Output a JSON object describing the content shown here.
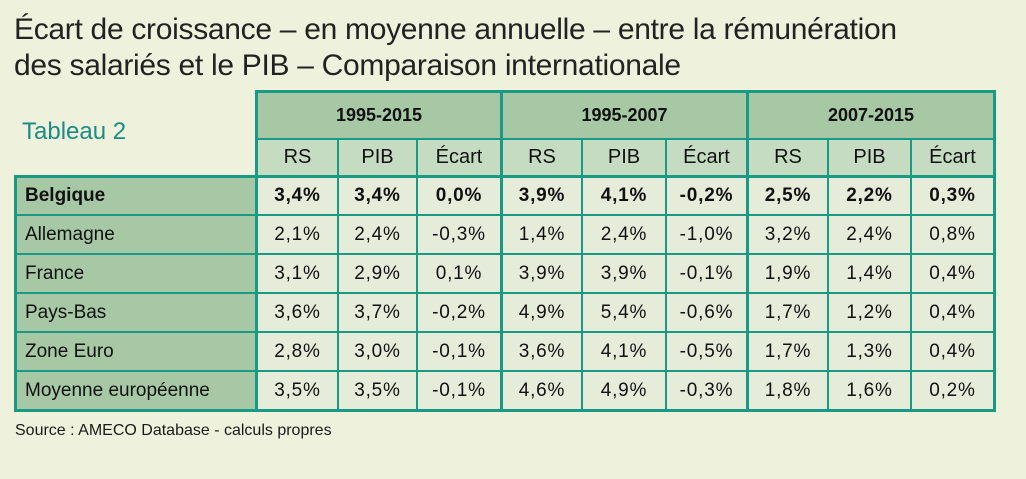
{
  "title": {
    "line1": "Écart de croissance – en moyenne annuelle – entre la rémunération",
    "line2": "des salariés et le PIB – Comparaison internationale"
  },
  "table_label": "Tableau 2",
  "source": "Source : AMECO Database - calculs propres",
  "table": {
    "periods": [
      "1995-2015",
      "1995-2007",
      "2007-2015"
    ],
    "sub_headers": [
      "RS",
      "PIB",
      "Écart",
      "RS",
      "PIB",
      "Écart",
      "RS",
      "PIB",
      "Écart"
    ],
    "rows": [
      {
        "country": "Belgique",
        "bold": true,
        "values": [
          "3,4%",
          "3,4%",
          "0,0%",
          "3,9%",
          "4,1%",
          "-0,2%",
          "2,5%",
          "2,2%",
          "0,3%"
        ]
      },
      {
        "country": "Allemagne",
        "bold": false,
        "values": [
          "2,1%",
          "2,4%",
          "-0,3%",
          "1,4%",
          "2,4%",
          "-1,0%",
          "3,2%",
          "2,4%",
          "0,8%"
        ]
      },
      {
        "country": "France",
        "bold": false,
        "values": [
          "3,1%",
          "2,9%",
          "0,1%",
          "3,9%",
          "3,9%",
          "-0,1%",
          "1,9%",
          "1,4%",
          "0,4%"
        ]
      },
      {
        "country": "Pays-Bas",
        "bold": false,
        "values": [
          "3,6%",
          "3,7%",
          "-0,2%",
          "4,9%",
          "5,4%",
          "-0,6%",
          "1,7%",
          "1,2%",
          "0,4%"
        ]
      },
      {
        "country": "Zone Euro",
        "bold": false,
        "values": [
          "2,8%",
          "3,0%",
          "-0,1%",
          "3,6%",
          "4,1%",
          "-0,5%",
          "1,7%",
          "1,3%",
          "0,4%"
        ]
      },
      {
        "country": "Moyenne européenne",
        "bold": false,
        "values": [
          "3,5%",
          "3,5%",
          "-0,1%",
          "4,6%",
          "4,9%",
          "-0,3%",
          "1,8%",
          "1,6%",
          "0,2%"
        ]
      }
    ]
  }
}
